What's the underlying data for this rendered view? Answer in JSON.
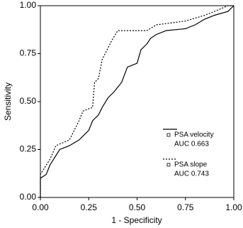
{
  "chart_data": {
    "type": "line",
    "xlabel": "1 - Specificity",
    "ylabel": "Sensitivity",
    "xlim": [
      0,
      1
    ],
    "ylim": [
      0,
      1
    ],
    "xticks": [
      {
        "value": 0,
        "label": "0.00"
      },
      {
        "value": 0.25,
        "label": "0.25"
      },
      {
        "value": 0.5,
        "label": "0.50"
      },
      {
        "value": 0.75,
        "label": "0.75"
      },
      {
        "value": 1,
        "label": "1.00"
      }
    ],
    "yticks": [
      {
        "value": 0,
        "label": "0.00"
      },
      {
        "value": 0.25,
        "label": "0.25"
      },
      {
        "value": 0.5,
        "label": "0.50"
      },
      {
        "value": 0.75,
        "label": "0.75"
      },
      {
        "value": 1,
        "label": "1.00"
      }
    ],
    "series": [
      {
        "name": "PSA velocity",
        "auc": "AUC 0.663",
        "color": "#000000",
        "dash": "solid",
        "x": [
          0,
          0,
          0.03,
          0.05,
          0.1,
          0.15,
          0.2,
          0.25,
          0.27,
          0.3,
          0.32,
          0.35,
          0.38,
          0.42,
          0.45,
          0.5,
          0.52,
          0.55,
          0.57,
          0.6,
          0.65,
          0.75,
          0.8,
          0.85,
          0.9,
          0.97,
          1
        ],
        "y": [
          0,
          0.1,
          0.12,
          0.17,
          0.25,
          0.27,
          0.3,
          0.35,
          0.4,
          0.43,
          0.47,
          0.52,
          0.55,
          0.6,
          0.68,
          0.7,
          0.77,
          0.8,
          0.83,
          0.85,
          0.87,
          0.88,
          0.9,
          0.93,
          0.95,
          0.97,
          1
        ]
      },
      {
        "name": "PSA slope",
        "auc": "AUC 0.743",
        "color": "#000000",
        "dash": "dotted",
        "x": [
          0,
          0,
          0.05,
          0.08,
          0.15,
          0.2,
          0.22,
          0.27,
          0.28,
          0.3,
          0.32,
          0.35,
          0.37,
          0.4,
          0.55,
          0.6,
          0.75,
          0.85,
          0.9,
          0.97,
          1
        ],
        "y": [
          0,
          0.12,
          0.2,
          0.27,
          0.3,
          0.4,
          0.45,
          0.47,
          0.6,
          0.62,
          0.72,
          0.78,
          0.82,
          0.87,
          0.87,
          0.9,
          0.92,
          0.95,
          0.97,
          1,
          1
        ]
      }
    ]
  }
}
